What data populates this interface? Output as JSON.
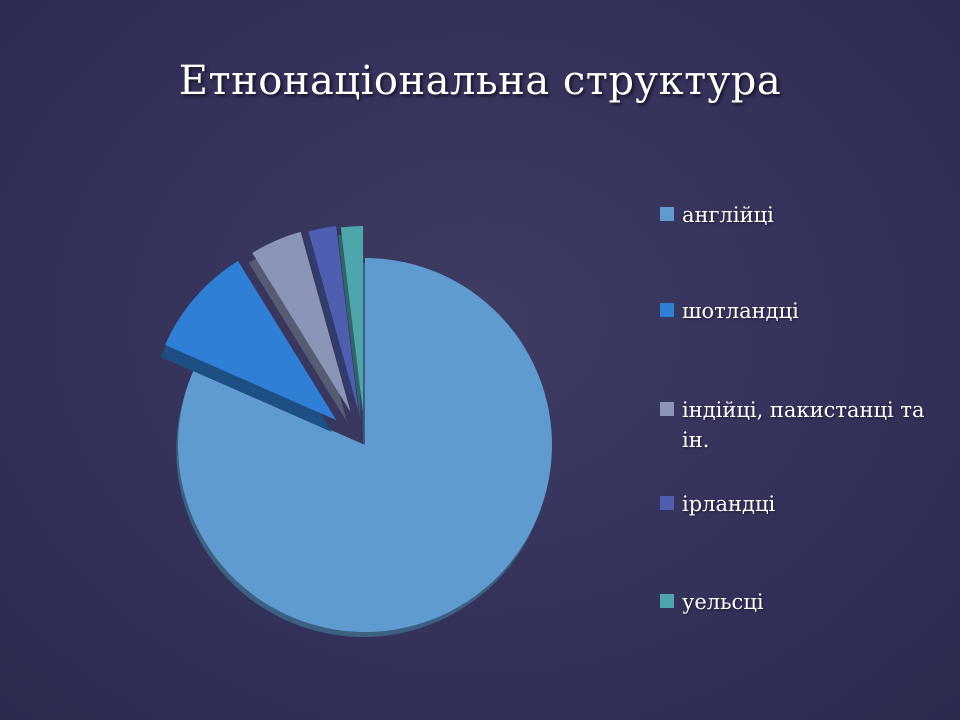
{
  "title": "Етнонаціональна структура",
  "chart_data": {
    "type": "pie",
    "categories": [
      "англійці",
      "шотландці",
      "індійці, пакистанці та ін.",
      "ірландці",
      "уельсці"
    ],
    "values": [
      81.5,
      9.6,
      4.5,
      2.4,
      1.9
    ],
    "colors": [
      "#5f9bd0",
      "#2f7fd6",
      "#8b95b8",
      "#4e5fb2",
      "#4ea5ab"
    ],
    "exploded": true,
    "legend_position": "right"
  }
}
